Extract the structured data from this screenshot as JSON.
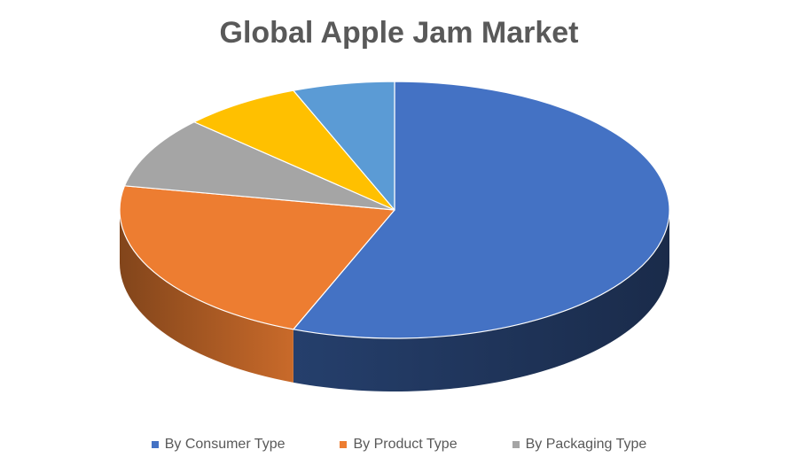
{
  "chart_data": {
    "type": "pie",
    "title": "Global Apple Jam Market",
    "categories": [
      "By Consumer Type",
      "By Product Type",
      "By Packaging Type",
      "",
      ""
    ],
    "values": [
      56,
      22,
      9,
      7,
      6
    ],
    "colors": [
      "#4472C4",
      "#ED7D31",
      "#A5A5A5",
      "#FFC000",
      "#5B9BD5"
    ],
    "legend": {
      "position": "bottom",
      "entries": [
        {
          "label": "By Consumer Type",
          "color": "#4472C4"
        },
        {
          "label": "By Product Type",
          "color": "#ED7D31"
        },
        {
          "label": "By Packaging Type",
          "color": "#A5A5A5"
        }
      ]
    },
    "style": "3d"
  }
}
